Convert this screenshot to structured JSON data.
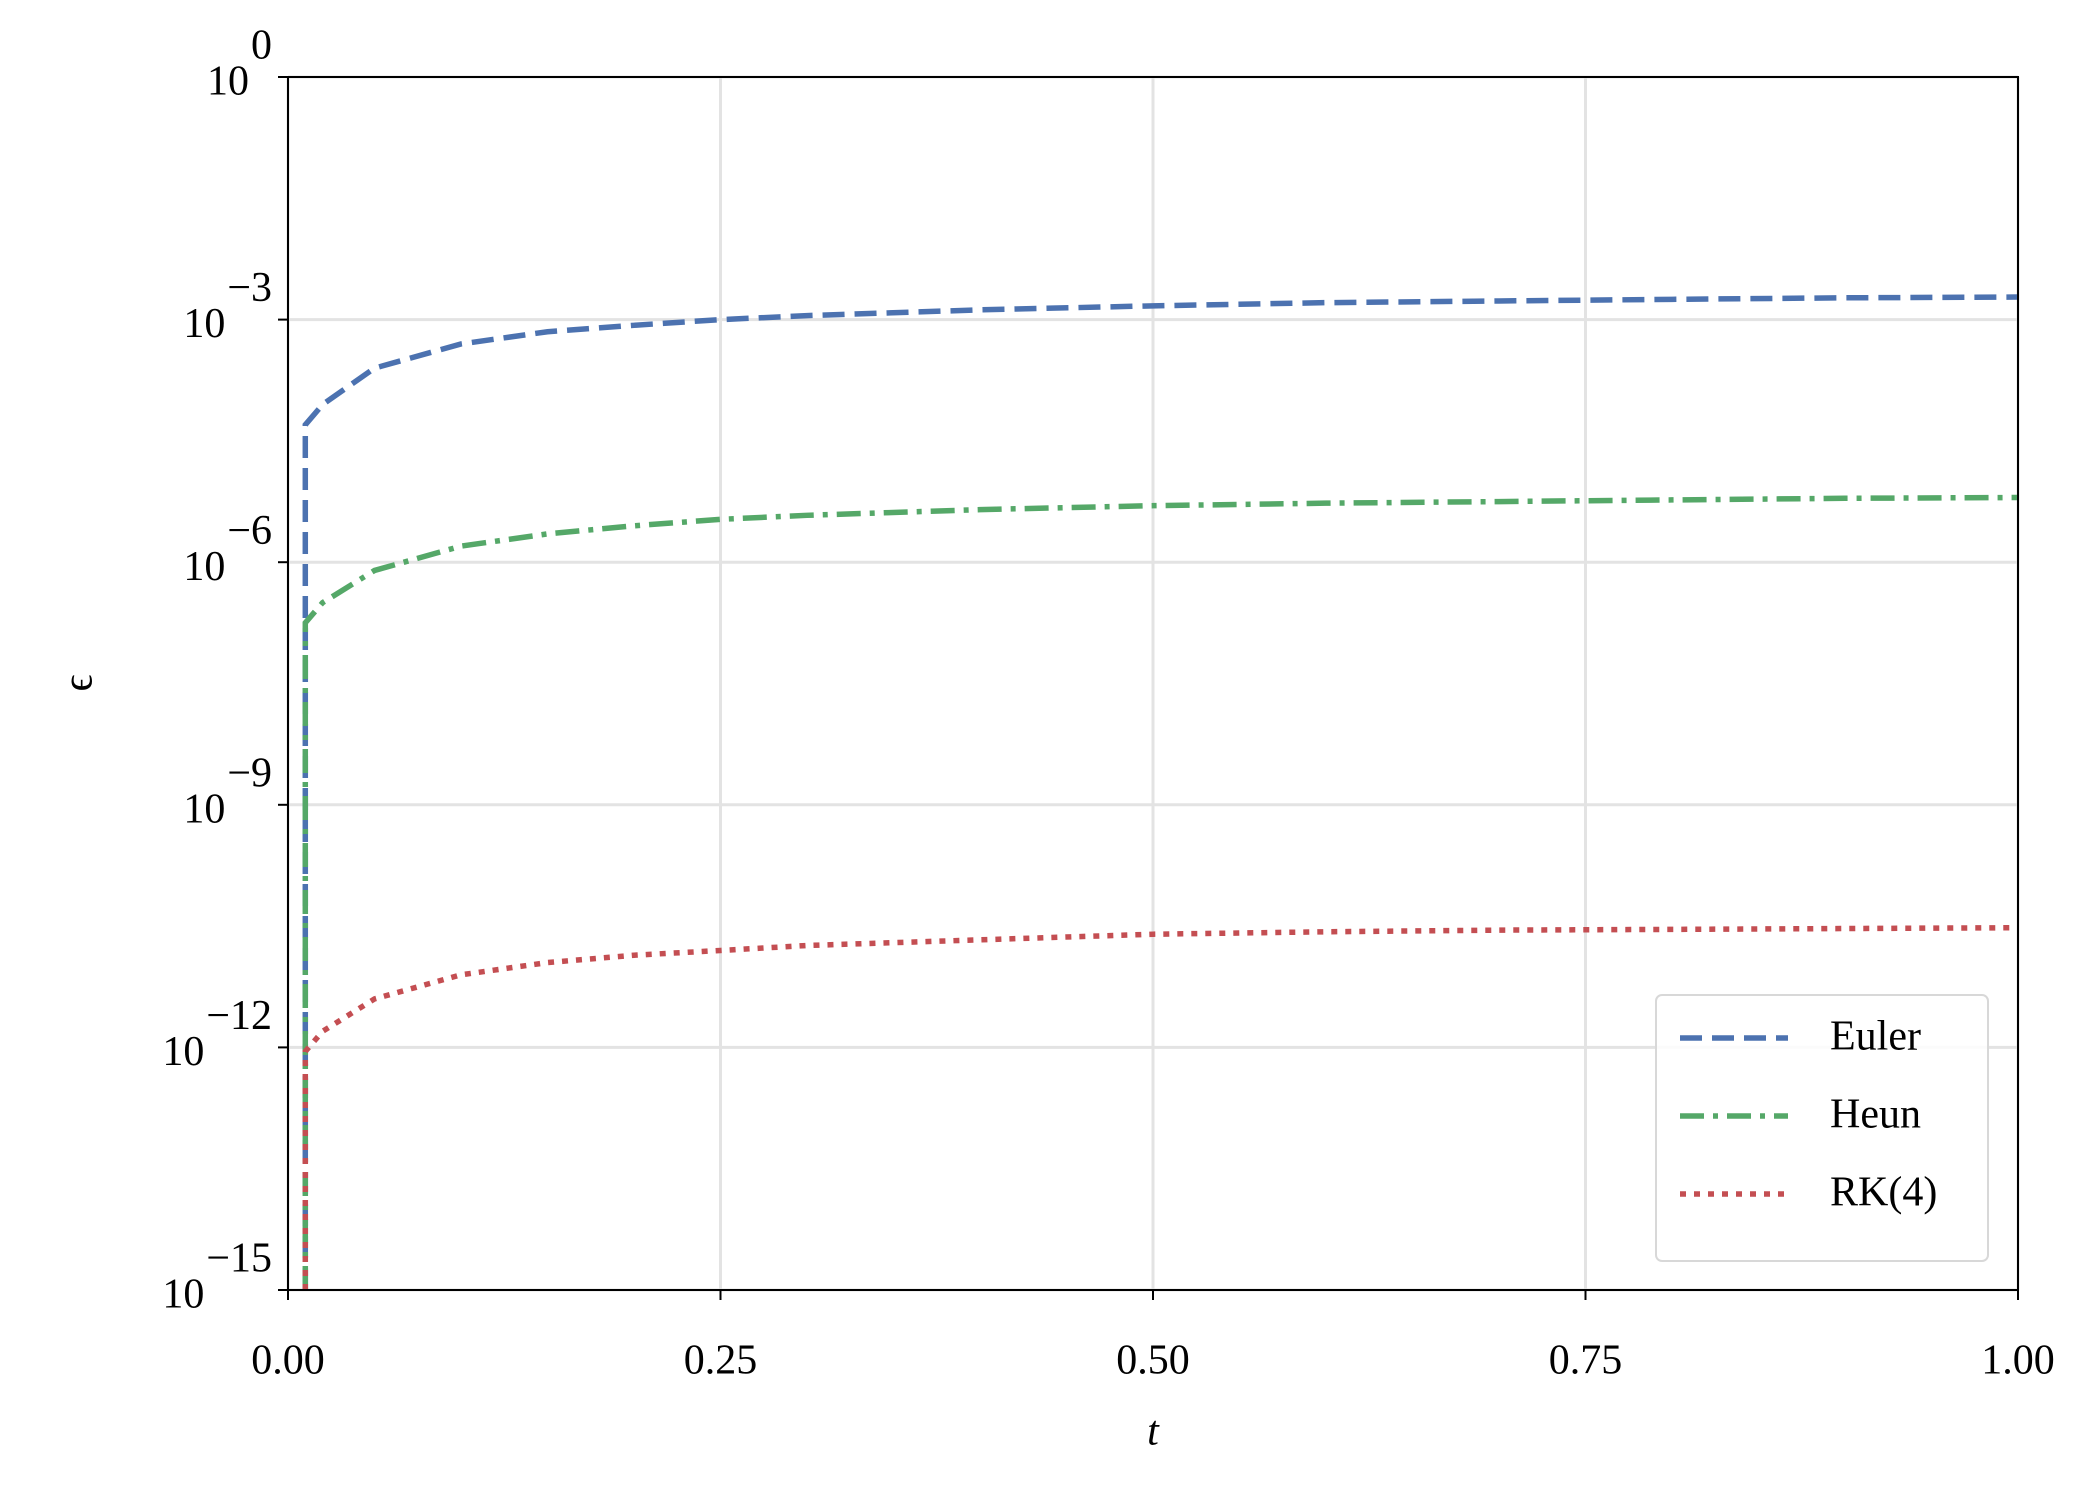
{
  "chart_data": {
    "type": "line",
    "xlabel": "t",
    "ylabel": "ϵ",
    "yscale": "log",
    "grid": true,
    "legend": "lower right",
    "xlim": [
      0,
      1
    ],
    "xticks": [
      {
        "value": 0,
        "label": "0.00"
      },
      {
        "value": 0.25,
        "label": "0.25"
      },
      {
        "value": 0.5,
        "label": "0.50"
      },
      {
        "value": 0.75,
        "label": "0.75"
      },
      {
        "value": 1,
        "label": "1.00"
      }
    ],
    "ylim": [
      1e-15,
      1
    ],
    "yticks": [
      {
        "value": 1e-15,
        "label": "10",
        "superscript": "−15"
      },
      {
        "value": 1e-12,
        "label": "10",
        "superscript": "−12"
      },
      {
        "value": 1e-09,
        "label": "10",
        "superscript": "−9"
      },
      {
        "value": 1e-06,
        "label": "10",
        "superscript": "−6"
      },
      {
        "value": 0.001,
        "label": "10",
        "superscript": "−3"
      },
      {
        "value": 1,
        "label": "10",
        "superscript": "0"
      }
    ],
    "x": [
      0.01,
      0.01,
      0.02,
      0.05,
      0.1,
      0.15,
      0.2,
      0.25,
      0.3,
      0.4,
      0.5,
      0.6,
      0.7,
      0.8,
      0.9,
      1.0
    ],
    "series": [
      {
        "name": "Euler",
        "color": "#4c72b0",
        "linestyle": "--",
        "values": [
          1e-15,
          5e-05,
          8.9e-05,
          0.000251,
          0.0005,
          0.000708,
          0.00085,
          0.001,
          0.00112,
          0.00132,
          0.00148,
          0.00162,
          0.0017,
          0.00178,
          0.00186,
          0.0019
        ]
      },
      {
        "name": "Heun",
        "color": "#55a868",
        "linestyle": "-.",
        "values": [
          1e-15,
          1.78e-07,
          3.16e-07,
          7.9e-07,
          1.58e-06,
          2.24e-06,
          2.82e-06,
          3.39e-06,
          3.8e-06,
          4.47e-06,
          5e-06,
          5.37e-06,
          5.62e-06,
          5.89e-06,
          6.17e-06,
          6.31e-06
        ]
      },
      {
        "name": "RK(4)",
        "color": "#c44e52",
        "linestyle": ":",
        "values": [
          1e-15,
          8.9e-13,
          1.58e-12,
          3.98e-12,
          7.9e-12,
          1.12e-11,
          1.38e-11,
          1.58e-11,
          1.82e-11,
          2.14e-11,
          2.51e-11,
          2.69e-11,
          2.82e-11,
          2.88e-11,
          2.95e-11,
          3.02e-11
        ]
      }
    ]
  }
}
